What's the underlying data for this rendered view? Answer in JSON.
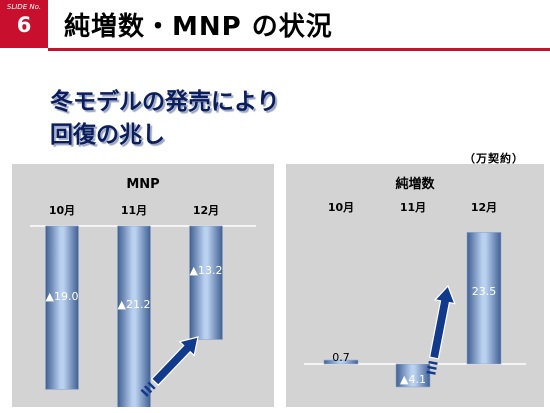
{
  "slide": {
    "label": "SLIDE No.",
    "number": "6"
  },
  "title": "純増数・MNP の状況",
  "subtitle": {
    "line1": "冬モデルの発売により",
    "line2": "回復の兆し"
  },
  "unit_note": "（万契約）",
  "colors": {
    "accent": "#c8102e",
    "panel_bg": "#d3d3d3",
    "bar_dark": "#3f5f94",
    "bar_light": "#b9d0ee",
    "arrow": "#123a8c",
    "navy": "#0b1d5c"
  },
  "chart_data": [
    {
      "type": "bar",
      "title": "MNP",
      "categories": [
        "10月",
        "11月",
        "12月"
      ],
      "values": [
        -19.0,
        -21.2,
        -13.2
      ],
      "data_labels": [
        "▲19.0",
        "▲21.2",
        "▲13.2"
      ],
      "ylim": [
        -25,
        1
      ],
      "annotation": "upward arrow from 11月 to 12月"
    },
    {
      "type": "bar",
      "title": "純増数",
      "categories": [
        "10月",
        "11月",
        "12月"
      ],
      "values": [
        0.7,
        -4.1,
        23.5
      ],
      "data_labels": [
        "0.7",
        "▲4.1",
        "23.5"
      ],
      "ylim": [
        -5,
        27
      ],
      "annotation": "upward arrow from 11月 to 12月"
    }
  ]
}
